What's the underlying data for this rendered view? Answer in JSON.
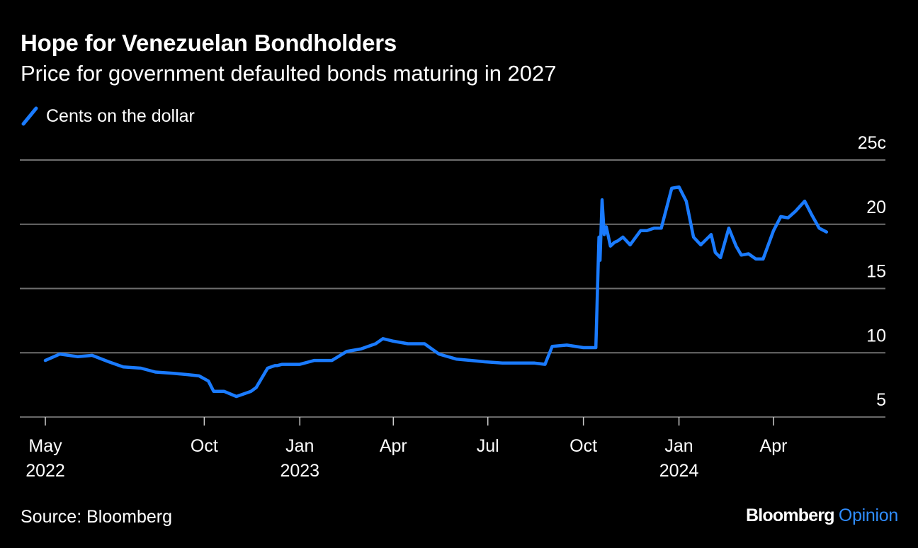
{
  "title": "Hope for Venezuelan Bondholders",
  "subtitle": "Price for government defaulted bonds maturing in 2027",
  "source": "Source: Bloomberg",
  "brand": {
    "name": "Bloomberg",
    "section": "Opinion"
  },
  "colors": {
    "line": "#1a7bff",
    "grid": "#6e6e6e",
    "background": "#000000",
    "brand_accent": "#2f8cff"
  },
  "chart_data": {
    "type": "line",
    "series": [
      {
        "name": "Cents on the dollar",
        "x": [
          "2022-05-01",
          "2022-05-15",
          "2022-06-01",
          "2022-06-15",
          "2022-07-01",
          "2022-07-15",
          "2022-08-01",
          "2022-08-15",
          "2022-09-01",
          "2022-09-15",
          "2022-09-26",
          "2022-10-05",
          "2022-10-10",
          "2022-10-20",
          "2022-11-01",
          "2022-11-15",
          "2022-11-20",
          "2022-12-01",
          "2022-12-08",
          "2022-12-10",
          "2022-12-15",
          "2023-01-01",
          "2023-01-15",
          "2023-02-01",
          "2023-02-15",
          "2023-03-01",
          "2023-03-15",
          "2023-03-22",
          "2023-04-01",
          "2023-04-15",
          "2023-05-01",
          "2023-05-15",
          "2023-06-01",
          "2023-06-15",
          "2023-06-28",
          "2023-07-15",
          "2023-08-01",
          "2023-08-15",
          "2023-08-25",
          "2023-09-01",
          "2023-09-15",
          "2023-10-01",
          "2023-10-13",
          "2023-10-16",
          "2023-10-17",
          "2023-10-19",
          "2023-10-21",
          "2023-10-23",
          "2023-10-27",
          "2023-10-31",
          "2023-11-03",
          "2023-11-08",
          "2023-11-15",
          "2023-11-25",
          "2023-12-01",
          "2023-12-08",
          "2023-12-15",
          "2023-12-25",
          "2024-01-01",
          "2024-01-08",
          "2024-01-15",
          "2024-01-22",
          "2024-02-01",
          "2024-02-05",
          "2024-02-10",
          "2024-02-18",
          "2024-02-25",
          "2024-03-01",
          "2024-03-08",
          "2024-03-15",
          "2024-03-22",
          "2024-04-01",
          "2024-04-08",
          "2024-04-15",
          "2024-04-22",
          "2024-05-01",
          "2024-05-08",
          "2024-05-15",
          "2024-05-22"
        ],
        "values": [
          9.4,
          9.9,
          9.7,
          9.8,
          9.3,
          8.9,
          8.8,
          8.5,
          8.4,
          8.3,
          8.2,
          7.8,
          7.0,
          7.0,
          6.6,
          7.0,
          7.3,
          8.8,
          9.0,
          9.0,
          9.1,
          9.1,
          9.4,
          9.4,
          10.1,
          10.3,
          10.7,
          11.1,
          10.9,
          10.7,
          10.7,
          9.9,
          9.5,
          9.4,
          9.3,
          9.2,
          9.2,
          9.2,
          9.1,
          10.5,
          10.6,
          10.4,
          10.4,
          19.0,
          17.2,
          21.9,
          19.2,
          19.8,
          18.3,
          18.6,
          18.7,
          19.0,
          18.4,
          19.5,
          19.5,
          19.7,
          19.7,
          22.8,
          22.9,
          21.8,
          19.0,
          18.4,
          19.2,
          17.8,
          17.4,
          19.7,
          18.3,
          17.6,
          17.7,
          17.3,
          17.3,
          19.5,
          20.6,
          20.5,
          21.0,
          21.8,
          20.7,
          19.7,
          19.4
        ]
      }
    ],
    "y_ticks": [
      5,
      10,
      15,
      20,
      25
    ],
    "y_tick_labels": [
      "5",
      "10",
      "15",
      "20",
      "25c"
    ],
    "ylim": [
      5,
      25
    ],
    "x_ticks": [
      {
        "date": "2022-05-01",
        "month": "May",
        "year": "2022"
      },
      {
        "date": "2022-10-01",
        "month": "Oct",
        "year": ""
      },
      {
        "date": "2023-01-01",
        "month": "Jan",
        "year": "2023"
      },
      {
        "date": "2023-04-01",
        "month": "Apr",
        "year": ""
      },
      {
        "date": "2023-07-01",
        "month": "Jul",
        "year": ""
      },
      {
        "date": "2023-10-01",
        "month": "Oct",
        "year": ""
      },
      {
        "date": "2024-01-01",
        "month": "Jan",
        "year": "2024"
      },
      {
        "date": "2024-04-01",
        "month": "Apr",
        "year": ""
      }
    ],
    "grid": true,
    "legend_position": "top-left"
  }
}
